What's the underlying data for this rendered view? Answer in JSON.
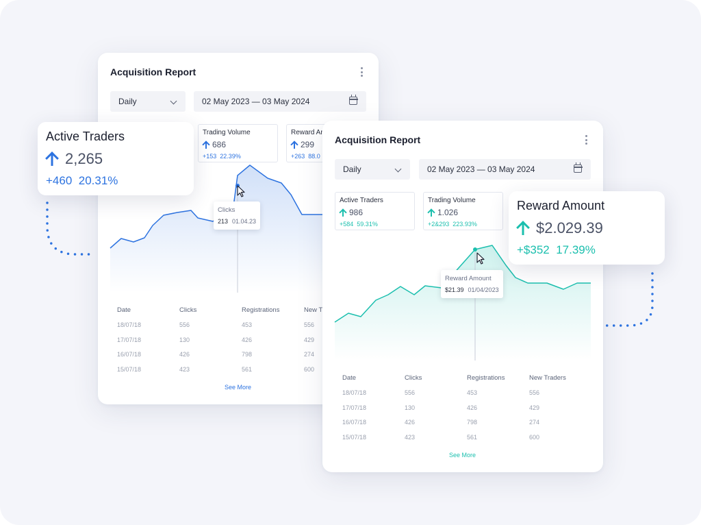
{
  "colors": {
    "accent_blue": "#2d73e0",
    "accent_teal": "#1bbfae",
    "background": "#f4f5fa"
  },
  "back_card": {
    "title": "Acquisition Report",
    "period_select": "Daily",
    "date_range": "02 May 2023 — 03 May 2024",
    "metrics": [
      {
        "label": "Trading Volume",
        "value": "686",
        "delta": "+153",
        "percent": "22.39%"
      },
      {
        "label": "Reward Am",
        "value": "299",
        "delta": "+263",
        "percent": "88.0"
      }
    ],
    "tooltip": {
      "series": "Clicks",
      "value": "213",
      "date": "01.04.23"
    },
    "table": {
      "headers": [
        "Date",
        "Clicks",
        "Registrations",
        "New Tr"
      ],
      "rows": [
        [
          "18/07/18",
          "556",
          "453",
          "556"
        ],
        [
          "17/07/18",
          "130",
          "426",
          "429"
        ],
        [
          "16/07/18",
          "426",
          "798",
          "274"
        ],
        [
          "15/07/18",
          "423",
          "561",
          "600"
        ]
      ]
    },
    "see_more": "See More"
  },
  "front_card": {
    "title": "Acquisition Report",
    "period_select": "Daily",
    "date_range": "02 May 2023 — 03 May 2024",
    "metrics": [
      {
        "label": "Active Traders",
        "value": "986",
        "delta": "+584",
        "percent": "59.31%"
      },
      {
        "label": "Trading Volume",
        "value": "1.026",
        "delta": "+2&293",
        "percent": "223.93%"
      }
    ],
    "tooltip": {
      "series": "Reward Amount",
      "value": "$21.39",
      "date": "01/04/2023"
    },
    "table": {
      "headers": [
        "Date",
        "Clicks",
        "Registrations",
        "New Traders"
      ],
      "rows": [
        [
          "18/07/18",
          "556",
          "453",
          "556"
        ],
        [
          "17/07/18",
          "130",
          "426",
          "429"
        ],
        [
          "16/07/18",
          "426",
          "798",
          "274"
        ],
        [
          "15/07/18",
          "423",
          "561",
          "600"
        ]
      ]
    },
    "see_more": "See More"
  },
  "float_active_traders": {
    "title": "Active Traders",
    "value": "2,265",
    "delta": "+460",
    "percent": "20.31%"
  },
  "float_reward_amount": {
    "title": "Reward Amount",
    "value": "$2.029.39",
    "delta": "+$352",
    "percent": "17.39%"
  },
  "icons": [
    "kebab-menu-icon",
    "chevron-down-icon",
    "calendar-icon",
    "arrow-up-icon",
    "mouse-cursor-icon"
  ]
}
